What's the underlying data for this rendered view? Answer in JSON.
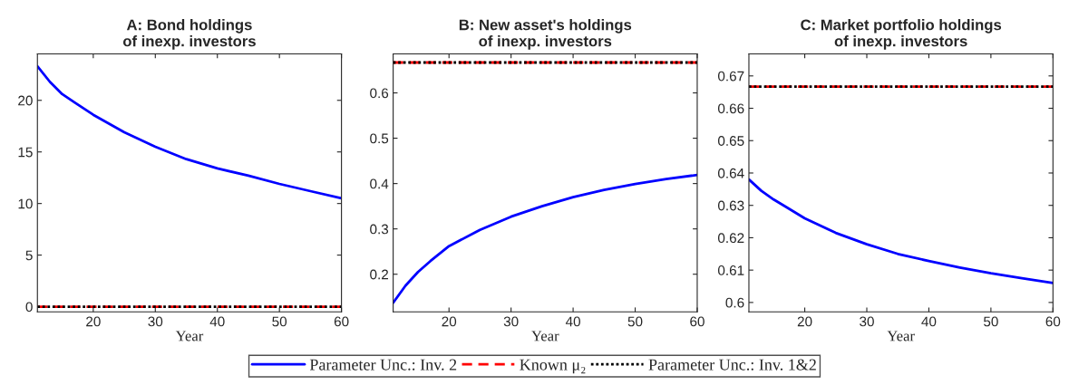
{
  "chart_data": [
    {
      "type": "line",
      "title": "A: Bond holdings\nof inexp. investors",
      "xlabel": "Year",
      "xlim": [
        11,
        60
      ],
      "xticks": [
        20,
        30,
        40,
        50,
        60
      ],
      "ylim": [
        -0.5,
        24.5
      ],
      "yticks": [
        0,
        5,
        10,
        15,
        20
      ],
      "grid": false,
      "legend": "bottom",
      "series": [
        {
          "name": "Parameter Unc.: Inv. 2",
          "color": "#0000ff",
          "line_style": "solid",
          "x": [
            11,
            13,
            15,
            17,
            20,
            25,
            30,
            35,
            40,
            45,
            50,
            55,
            60
          ],
          "values": [
            23.3,
            21.8,
            20.6,
            19.8,
            18.6,
            16.9,
            15.5,
            14.3,
            13.4,
            12.7,
            11.9,
            11.2,
            10.5
          ]
        },
        {
          "name": "Known μ₂",
          "color": "#ff0000",
          "line_style": "dashed",
          "x": [
            11,
            60
          ],
          "values": [
            0,
            0
          ]
        },
        {
          "name": "Parameter Unc.: Inv. 1&2",
          "color": "#000000",
          "line_style": "dotted",
          "x": [
            11,
            60
          ],
          "values": [
            0,
            0
          ]
        }
      ]
    },
    {
      "type": "line",
      "title": "B: New asset's holdings\nof inexp. investors",
      "xlabel": "Year",
      "xlim": [
        11,
        60
      ],
      "xticks": [
        20,
        30,
        40,
        50,
        60
      ],
      "ylim": [
        0.117,
        0.686
      ],
      "yticks": [
        0.2,
        0.3,
        0.4,
        0.5,
        0.6
      ],
      "grid": false,
      "series": [
        {
          "color": "#0000ff",
          "line_style": "solid",
          "x": [
            11,
            13,
            15,
            17,
            20,
            25,
            30,
            35,
            40,
            45,
            50,
            55,
            60
          ],
          "values": [
            0.137,
            0.175,
            0.205,
            0.229,
            0.262,
            0.298,
            0.327,
            0.35,
            0.37,
            0.386,
            0.399,
            0.41,
            0.419
          ]
        },
        {
          "color": "#ff0000",
          "line_style": "dashed",
          "x": [
            11,
            60
          ],
          "values": [
            0.667,
            0.667
          ]
        },
        {
          "color": "#000000",
          "line_style": "dotted",
          "x": [
            11,
            60
          ],
          "values": [
            0.667,
            0.667
          ]
        }
      ]
    },
    {
      "type": "line",
      "title": "C: Market portfolio holdings\nof inexp. investors",
      "xlabel": "Year",
      "xlim": [
        11,
        60
      ],
      "xticks": [
        20,
        30,
        40,
        50,
        60
      ],
      "ylim": [
        0.5971,
        0.6768
      ],
      "yticks": [
        0.6,
        0.61,
        0.62,
        0.63,
        0.64,
        0.65,
        0.66,
        0.67
      ],
      "grid": false,
      "series": [
        {
          "color": "#0000ff",
          "line_style": "solid",
          "x": [
            11,
            13,
            15,
            17,
            20,
            25,
            30,
            35,
            40,
            45,
            50,
            55,
            60
          ],
          "values": [
            0.638,
            0.6345,
            0.6318,
            0.6295,
            0.626,
            0.6215,
            0.618,
            0.615,
            0.6128,
            0.6108,
            0.609,
            0.6075,
            0.606
          ]
        },
        {
          "color": "#ff0000",
          "line_style": "dashed",
          "x": [
            11,
            60
          ],
          "values": [
            0.6667,
            0.6667
          ]
        },
        {
          "color": "#000000",
          "line_style": "dotted",
          "x": [
            11,
            60
          ],
          "values": [
            0.6667,
            0.6667
          ]
        }
      ]
    }
  ]
}
